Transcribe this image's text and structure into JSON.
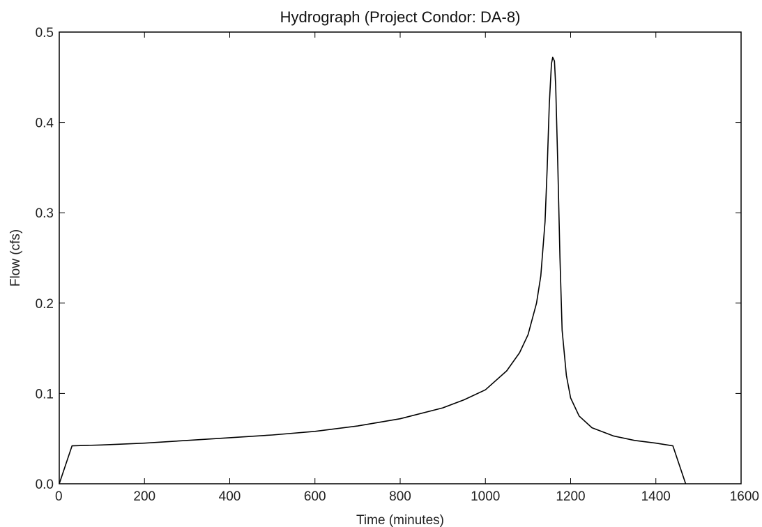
{
  "chart_data": {
    "type": "line",
    "title": "Hydrograph (Project Condor: DA-8)",
    "xlabel": "Time (minutes)",
    "ylabel": "Flow (cfs)",
    "xlim": [
      0,
      1600
    ],
    "ylim": [
      0.0,
      0.5
    ],
    "x_ticks": [
      0,
      200,
      400,
      600,
      800,
      1000,
      1200,
      1400,
      1600
    ],
    "x_tick_labels": [
      "0",
      "200",
      "400",
      "600",
      "800",
      "1000",
      "1200",
      "1400",
      "1600"
    ],
    "y_ticks": [
      0.0,
      0.1,
      0.2,
      0.3,
      0.4,
      0.5
    ],
    "y_tick_labels": [
      "0.0",
      "0.1",
      "0.2",
      "0.3",
      "0.4",
      "0.5"
    ],
    "grid": false,
    "colors": {
      "line": "#000000",
      "axes": "#000000"
    },
    "series": [
      {
        "x": [
          0,
          30,
          100,
          200,
          300,
          400,
          500,
          600,
          700,
          800,
          900,
          950,
          1000,
          1050,
          1080,
          1100,
          1120,
          1130,
          1140,
          1145,
          1150,
          1155,
          1158,
          1162,
          1165,
          1170,
          1175,
          1180,
          1190,
          1200,
          1220,
          1250,
          1300,
          1350,
          1400,
          1440,
          1470
        ],
        "y": [
          0.0,
          0.042,
          0.043,
          0.045,
          0.048,
          0.051,
          0.054,
          0.058,
          0.064,
          0.072,
          0.084,
          0.093,
          0.104,
          0.125,
          0.145,
          0.165,
          0.2,
          0.23,
          0.29,
          0.35,
          0.42,
          0.465,
          0.472,
          0.468,
          0.44,
          0.35,
          0.25,
          0.17,
          0.12,
          0.095,
          0.075,
          0.062,
          0.053,
          0.048,
          0.045,
          0.042,
          0.0
        ]
      }
    ]
  }
}
